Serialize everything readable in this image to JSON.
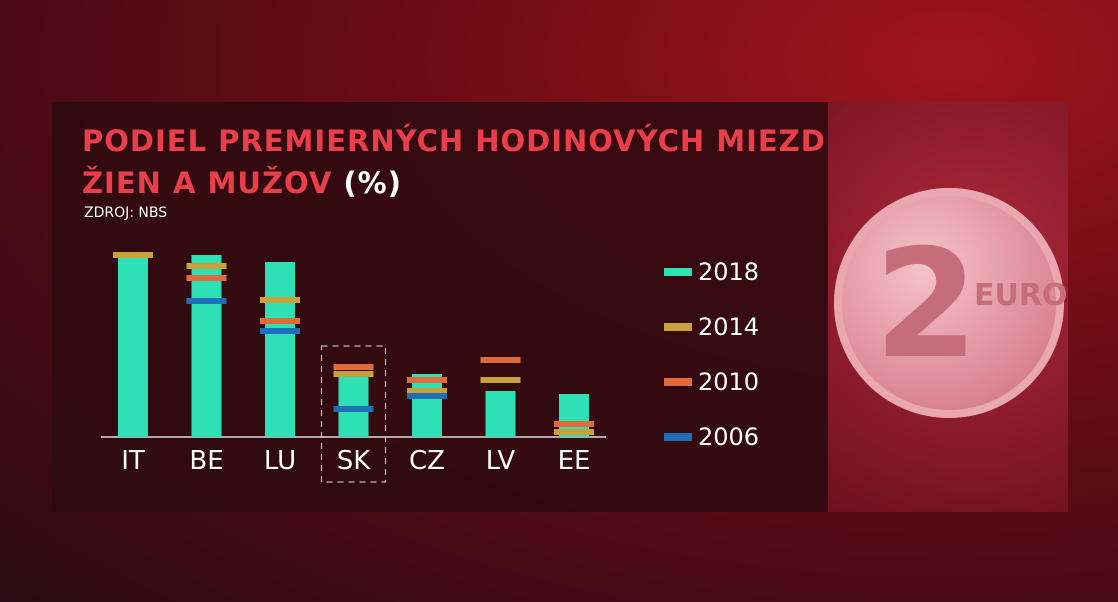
{
  "title_line1": "PODIEL PREMIERNÝCH HODINOVÝCH MIEZD",
  "title_line2": "ŽIEN A MUŽOV",
  "title_unit": "(%)",
  "source": "ZDROJ: NBS",
  "highlight": "SK",
  "photo": {
    "coin_text": "EURO",
    "coin_value": "2"
  },
  "chart_data": {
    "type": "bar",
    "title": "PODIEL PREMIERNÝCH HODINOVÝCH MIEZD ŽIEN A MUŽOV (%)",
    "categories": [
      "IT",
      "BE",
      "LU",
      "SK",
      "CZ",
      "LV",
      "EE"
    ],
    "note": "no value axis printed; values are relative estimates",
    "series": [
      {
        "name": "2018",
        "type": "bar",
        "color": "#2ee0b6",
        "values": [
          185,
          182,
          175,
          60,
          63,
          46,
          43
        ]
      },
      {
        "name": "2014",
        "type": "marker",
        "color": "#c9a03a",
        "values": [
          182,
          171,
          137,
          63,
          46,
          57,
          5
        ]
      },
      {
        "name": "2010",
        "type": "marker",
        "color": "#e06a3a",
        "values": [
          null,
          159,
          116,
          70,
          57,
          77,
          13
        ]
      },
      {
        "name": "2006",
        "type": "marker",
        "color": "#1f6fb8",
        "values": [
          null,
          136,
          106,
          28,
          41,
          null,
          null
        ]
      }
    ],
    "legend": "right",
    "grid": false
  }
}
